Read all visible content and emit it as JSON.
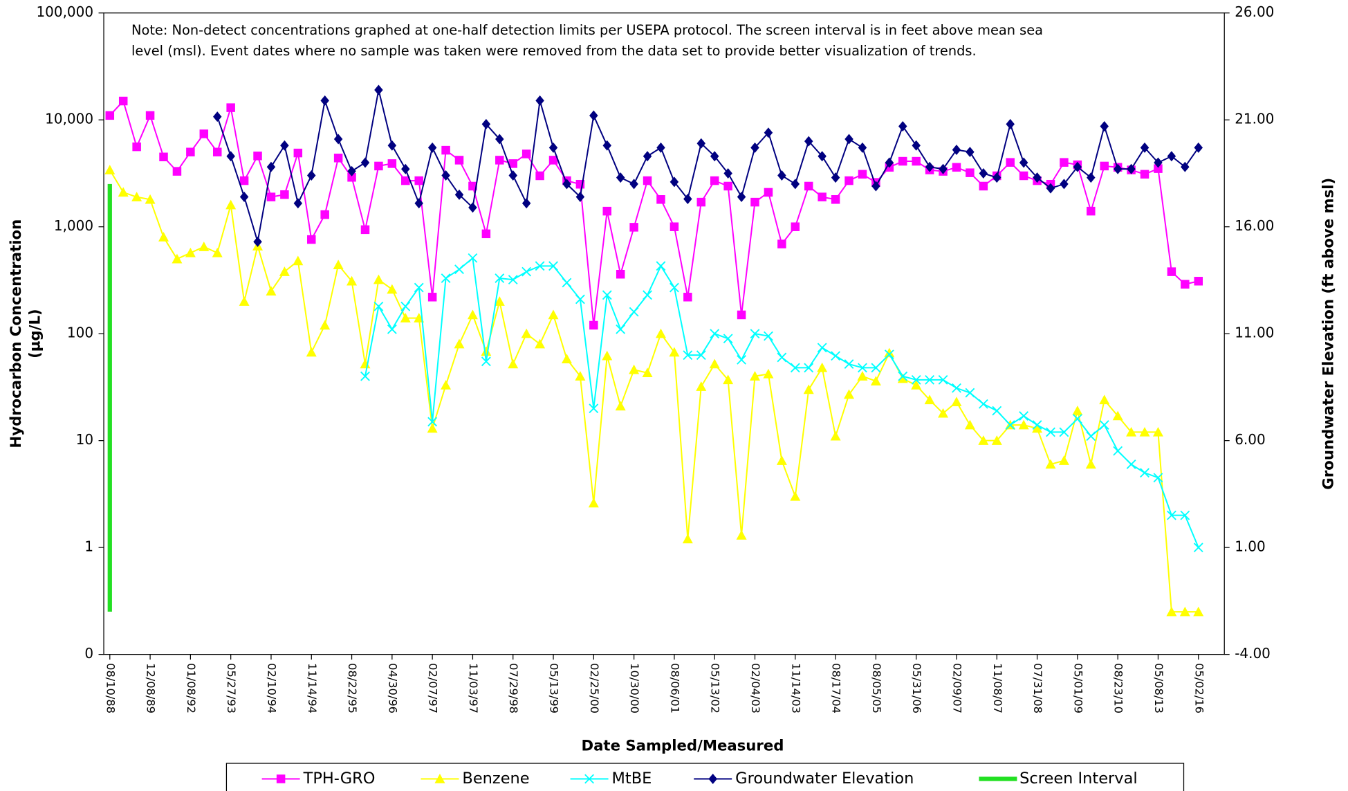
{
  "chart_data": {
    "type": "line",
    "annotation": [
      "Note: Non-detect concentrations graphed at one-half detection limits per USEPA protocol. The screen interval is in feet above mean sea",
      "level (msl).  Event dates where no sample was taken were removed from the data set to provide better visualization of trends."
    ],
    "x_label": "Date Sampled/Measured",
    "y_label": [
      "Hydrocarbon Concentration",
      "(µg/L)"
    ],
    "y2_label": "Groundwater Elevation (ft above msl)",
    "log_y": true,
    "legend": "bottom",
    "ylim": [
      0.1,
      100000
    ],
    "yticks": [
      {
        "value": 0.1,
        "label": "0"
      },
      1,
      10,
      100,
      {
        "value": 1000,
        "label": "1,000"
      },
      {
        "value": 10000,
        "label": "10,000"
      },
      {
        "value": 100000,
        "label": "100,000"
      }
    ],
    "y2lim": [
      -4,
      26
    ],
    "y2ticks": [
      {
        "value": -4,
        "label": "-4.00"
      },
      {
        "value": 1,
        "label": "1.00"
      },
      {
        "value": 6,
        "label": "6.00"
      },
      {
        "value": 11,
        "label": "11.00"
      },
      {
        "value": 16,
        "label": "16.00"
      },
      {
        "value": 21,
        "label": "21.00"
      },
      {
        "value": 26,
        "label": "26.00"
      }
    ],
    "categories": [
      "08/10/88",
      null,
      null,
      "12/08/89",
      null,
      null,
      "01/08/92",
      null,
      null,
      "05/27/93",
      null,
      null,
      "02/10/94",
      null,
      null,
      "11/14/94",
      null,
      null,
      "08/22/95",
      null,
      null,
      "04/30/96",
      null,
      null,
      "02/07/97",
      null,
      null,
      "11/03/97",
      null,
      null,
      "07/29/98",
      null,
      null,
      "05/13/99",
      null,
      null,
      "02/25/00",
      null,
      null,
      "10/30/00",
      null,
      null,
      "08/06/01",
      null,
      null,
      "05/13/02",
      null,
      null,
      "02/04/03",
      null,
      null,
      "11/14/03",
      null,
      null,
      "08/17/04",
      null,
      null,
      "08/05/05",
      null,
      null,
      "05/31/06",
      null,
      null,
      "02/09/07",
      null,
      null,
      "11/08/07",
      null,
      null,
      "07/31/08",
      null,
      null,
      "05/01/09",
      null,
      null,
      "08/23/10",
      null,
      null,
      "05/08/13",
      null,
      null,
      "05/02/16"
    ],
    "series": [
      {
        "name": "TPH-GRO",
        "color": "#ff00ff",
        "marker": "square",
        "values": [
          11000,
          15000,
          5600,
          11000,
          4500,
          3300,
          5000,
          7400,
          5000,
          13000,
          2700,
          4600,
          1900,
          2000,
          4900,
          760,
          1300,
          4400,
          2900,
          940,
          3700,
          3900,
          2700,
          2700,
          220,
          5200,
          4200,
          2400,
          860,
          4200,
          3900,
          4800,
          3000,
          4200,
          2700,
          2500,
          120,
          1400,
          360,
          990,
          2700,
          1800,
          1000,
          220,
          1700,
          2700,
          2400,
          150,
          1700,
          2100,
          690,
          1000,
          2400,
          1900,
          1800,
          2700,
          3100,
          2600,
          3600,
          4100,
          4100,
          3400,
          3300,
          3600,
          3200,
          2400,
          3000,
          4000,
          3000,
          2700,
          2500,
          4000,
          3800,
          1400,
          3700,
          3600,
          3400,
          3100,
          3500,
          380,
          290,
          310
        ]
      },
      {
        "name": "Benzene",
        "color": "#ffff00",
        "marker": "triangle",
        "values": [
          3400,
          2100,
          1900,
          1800,
          800,
          500,
          570,
          650,
          570,
          1600,
          200,
          660,
          250,
          380,
          480,
          67,
          120,
          440,
          310,
          52,
          320,
          260,
          140,
          140,
          13,
          33,
          80,
          150,
          68,
          200,
          52,
          100,
          80,
          150,
          58,
          40,
          2.6,
          62,
          21,
          46,
          43,
          100,
          67,
          1.2,
          32,
          52,
          37,
          1.3,
          40,
          42,
          6.5,
          3,
          30,
          48,
          11,
          27,
          40,
          36,
          66,
          38,
          33,
          24,
          18,
          23,
          14,
          10,
          10,
          14,
          14,
          13,
          6,
          6.5,
          19,
          6,
          24,
          17,
          12,
          12,
          12,
          0.25,
          0.25,
          0.25
        ]
      },
      {
        "name": "MtBE",
        "color": "#00ffff",
        "marker": "x",
        "values": [
          null,
          null,
          null,
          null,
          null,
          null,
          null,
          null,
          null,
          null,
          null,
          null,
          null,
          null,
          null,
          null,
          null,
          null,
          null,
          40,
          180,
          110,
          180,
          270,
          15,
          330,
          400,
          510,
          55,
          330,
          320,
          380,
          430,
          430,
          300,
          210,
          20,
          230,
          110,
          160,
          230,
          430,
          270,
          63,
          63,
          100,
          90,
          57,
          100,
          95,
          60,
          48,
          48,
          74,
          62,
          52,
          48,
          48,
          64,
          40,
          37,
          37,
          37,
          31,
          28,
          22,
          19,
          14,
          17,
          14,
          12,
          12,
          16,
          11,
          14,
          8,
          6,
          5,
          4.5,
          2,
          2,
          1
        ]
      },
      {
        "name": "Groundwater Elevation",
        "color": "#000080",
        "marker": "diamond",
        "axis": "y2",
        "values": [
          null,
          null,
          null,
          null,
          null,
          null,
          null,
          null,
          21.15,
          19.3,
          17.4,
          15.3,
          18.8,
          19.8,
          17.1,
          18.4,
          21.9,
          20.1,
          18.6,
          19.0,
          22.4,
          19.8,
          18.7,
          17.1,
          19.7,
          18.4,
          17.5,
          16.9,
          20.8,
          20.1,
          18.4,
          17.1,
          21.9,
          19.7,
          18.0,
          17.4,
          21.2,
          19.8,
          18.3,
          18.0,
          19.3,
          19.7,
          18.1,
          17.3,
          19.9,
          19.3,
          18.5,
          17.4,
          19.7,
          20.4,
          18.4,
          18.0,
          20.0,
          19.3,
          18.3,
          20.1,
          19.7,
          17.9,
          19.0,
          20.7,
          19.8,
          18.8,
          18.7,
          19.6,
          19.5,
          18.5,
          18.3,
          20.8,
          19.0,
          18.3,
          17.8,
          18.0,
          18.8,
          18.3,
          20.7,
          18.7,
          18.7,
          19.7,
          19.0,
          19.3,
          18.8,
          19.7
        ]
      }
    ],
    "screen_interval": {
      "name": "Screen Interval",
      "color": "#22e022",
      "axis": "y2",
      "top": 18,
      "bottom": -2
    }
  }
}
